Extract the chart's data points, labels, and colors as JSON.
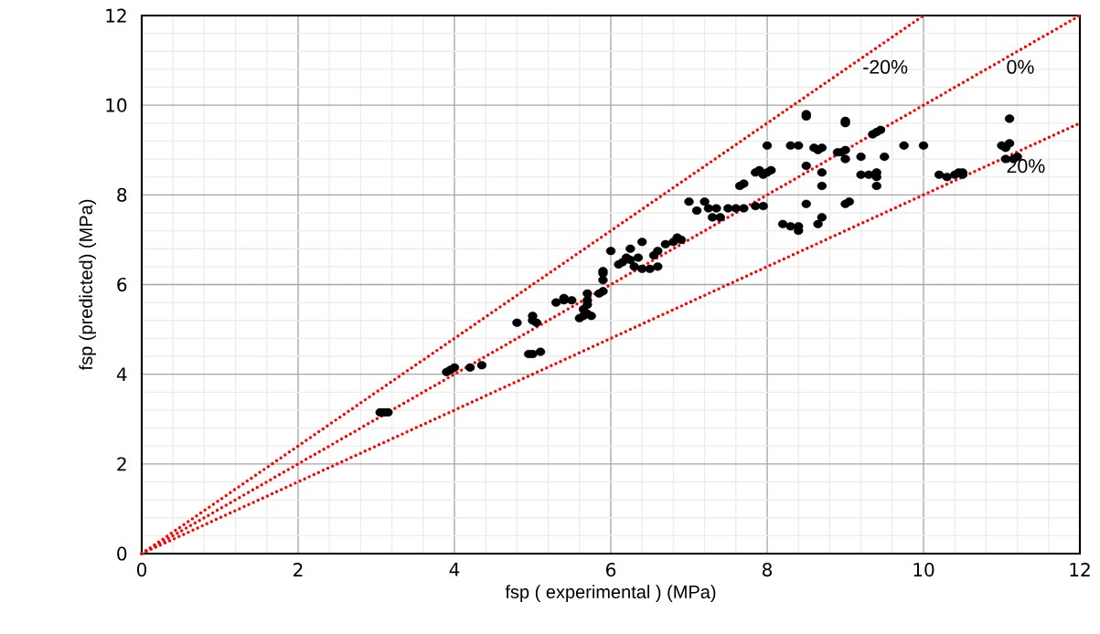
{
  "chart_data": {
    "type": "scatter",
    "xlabel": "fsp  ( experimental ) (MPa)",
    "ylabel": "fsp (predicted) (MPa)",
    "xlim": [
      0,
      12
    ],
    "ylim": [
      0,
      12
    ],
    "xticks": [
      0,
      2,
      4,
      6,
      8,
      10,
      12
    ],
    "yticks": [
      0,
      2,
      4,
      6,
      8,
      10,
      12
    ],
    "grid": true,
    "marker": "circle",
    "series": [
      {
        "color": "#000000",
        "x": [
          3.05,
          3.1,
          3.15,
          3.9,
          3.95,
          4.0,
          4.2,
          4.35,
          4.8,
          4.95,
          5.0,
          5.1,
          5.0,
          5.0,
          5.05,
          5.3,
          5.4,
          5.5,
          5.4,
          5.6,
          5.65,
          5.65,
          5.7,
          5.7,
          5.75,
          5.7,
          5.7,
          5.85,
          5.9,
          5.9,
          5.9,
          5.9,
          6.0,
          6.1,
          6.15,
          6.2,
          6.25,
          6.25,
          6.3,
          6.35,
          6.4,
          6.4,
          6.5,
          6.55,
          6.6,
          6.6,
          6.7,
          6.8,
          6.85,
          6.9,
          7.0,
          7.1,
          7.2,
          7.25,
          7.3,
          7.35,
          7.4,
          7.5,
          7.6,
          7.7,
          7.65,
          7.7,
          7.85,
          7.9,
          7.95,
          8.0,
          8.05,
          7.85,
          7.95,
          8.0,
          8.3,
          8.4,
          8.2,
          8.3,
          8.4,
          8.4,
          8.5,
          8.5,
          8.5,
          8.5,
          8.6,
          8.65,
          8.7,
          8.65,
          8.7,
          8.7,
          8.7,
          8.9,
          8.95,
          9.0,
          9.0,
          9.0,
          9.0,
          9.0,
          9.05,
          9.2,
          9.2,
          9.3,
          9.35,
          9.4,
          9.45,
          9.4,
          9.4,
          9.4,
          9.5,
          9.75,
          10.0,
          10.2,
          10.3,
          10.4,
          10.45,
          10.5,
          10.5,
          11.0,
          11.05,
          11.05,
          11.1,
          11.1,
          11.15,
          11.2
        ],
        "values": [
          3.15,
          3.15,
          3.15,
          4.05,
          4.1,
          4.15,
          4.15,
          4.2,
          5.15,
          4.45,
          4.45,
          4.5,
          5.3,
          5.2,
          5.15,
          5.6,
          5.7,
          5.65,
          5.65,
          5.25,
          5.3,
          5.45,
          5.55,
          5.35,
          5.3,
          5.65,
          5.8,
          5.8,
          5.85,
          6.1,
          6.25,
          6.3,
          6.75,
          6.45,
          6.5,
          6.6,
          6.8,
          6.55,
          6.4,
          6.6,
          6.35,
          6.95,
          6.35,
          6.65,
          6.75,
          6.4,
          6.9,
          6.95,
          7.05,
          7.0,
          7.85,
          7.65,
          7.85,
          7.7,
          7.5,
          7.7,
          7.5,
          7.7,
          7.7,
          7.7,
          8.2,
          8.25,
          8.5,
          8.55,
          8.45,
          8.5,
          8.55,
          7.75,
          7.75,
          9.1,
          9.1,
          9.1,
          7.35,
          7.3,
          7.3,
          7.2,
          7.8,
          8.65,
          9.75,
          9.8,
          9.05,
          9.0,
          9.05,
          7.35,
          7.5,
          8.2,
          8.5,
          8.95,
          8.95,
          9.0,
          9.6,
          9.65,
          8.8,
          7.8,
          7.85,
          8.85,
          8.45,
          8.45,
          9.35,
          9.4,
          9.45,
          8.5,
          8.4,
          8.2,
          8.85,
          9.1,
          9.1,
          8.45,
          8.4,
          8.45,
          8.5,
          8.45,
          8.5,
          9.1,
          9.05,
          8.8,
          9.7,
          9.15,
          8.8,
          8.85
        ]
      },
      {
        "type": "line",
        "name": "-20%",
        "color": "#ff0000",
        "line_style": "dotted",
        "marker": "none",
        "x": [
          0,
          10
        ],
        "values": [
          0,
          12
        ]
      },
      {
        "type": "line",
        "name": "0%",
        "color": "#ff0000",
        "line_style": "dotted",
        "marker": "none",
        "x": [
          0,
          12
        ],
        "values": [
          0,
          12
        ]
      },
      {
        "type": "line",
        "name": "20%",
        "color": "#ff0000",
        "line_style": "dotted",
        "marker": "none",
        "x": [
          0,
          12
        ],
        "values": [
          0,
          9.6
        ]
      }
    ]
  }
}
